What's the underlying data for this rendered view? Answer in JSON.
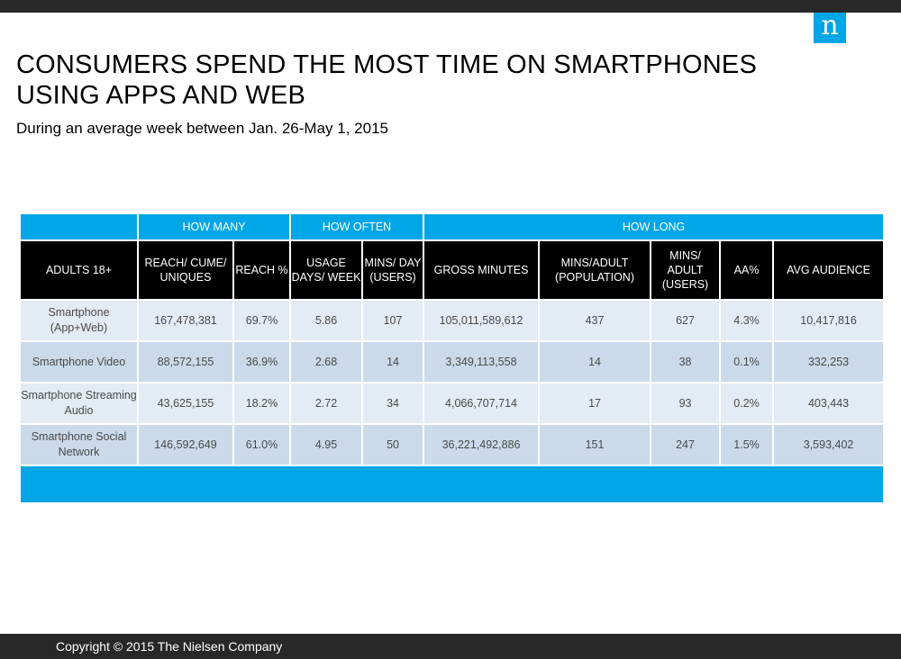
{
  "brand": {
    "logo_letter": "n",
    "accent": "#00a6e6",
    "dark": "#282828"
  },
  "title": "CONSUMERS SPEND THE MOST TIME ON SMARTPHONES USING APPS AND WEB",
  "subtitle": "During an average week between Jan. 26-May 1, 2015",
  "table": {
    "groups": {
      "blank": "",
      "how_many": "HOW MANY",
      "how_often": "HOW OFTEN",
      "how_long": "HOW LONG"
    },
    "columns": {
      "adults": "ADULTS 18+",
      "reach_cume": "REACH/ CUME/ UNIQUES",
      "reach_pct": "REACH %",
      "usage_days": "USAGE DAYS/ WEEK",
      "mins_day": "MINS/ DAY (USERS)",
      "gross_minutes": "GROSS MINUTES",
      "mins_adult_pop": "MINS/ADULT (POPULATION)",
      "mins_adult_users": "MINS/ ADULT (USERS)",
      "aa_pct": "AA%",
      "avg_audience": "AVG AUDIENCE"
    },
    "rows": [
      {
        "label": "Smartphone (App+Web)",
        "reach": "167,478,381",
        "reach_pct": "69.7%",
        "usage_days": "5.86",
        "mins_day": "107",
        "gross": "105,011,589,612",
        "mins_pop": "437",
        "mins_users": "627",
        "aa": "4.3%",
        "avg": "10,417,816"
      },
      {
        "label": "Smartphone Video",
        "reach": "88,572,155",
        "reach_pct": "36.9%",
        "usage_days": "2.68",
        "mins_day": "14",
        "gross": "3,349,113,558",
        "mins_pop": "14",
        "mins_users": "38",
        "aa": "0.1%",
        "avg": "332,253"
      },
      {
        "label": "Smartphone Streaming Audio",
        "reach": "43,625,155",
        "reach_pct": "18.2%",
        "usage_days": "2.72",
        "mins_day": "34",
        "gross": "4,066,707,714",
        "mins_pop": "17",
        "mins_users": "93",
        "aa": "0.2%",
        "avg": "403,443"
      },
      {
        "label": "Smartphone Social Network",
        "reach": "146,592,649",
        "reach_pct": "61.0%",
        "usage_days": "4.95",
        "mins_day": "50",
        "gross": "36,221,492,886",
        "mins_pop": "151",
        "mins_users": "247",
        "aa": "1.5%",
        "avg": "3,593,402"
      }
    ]
  },
  "footer": {
    "copyright": "Copyright © 2015 The Nielsen Company"
  }
}
